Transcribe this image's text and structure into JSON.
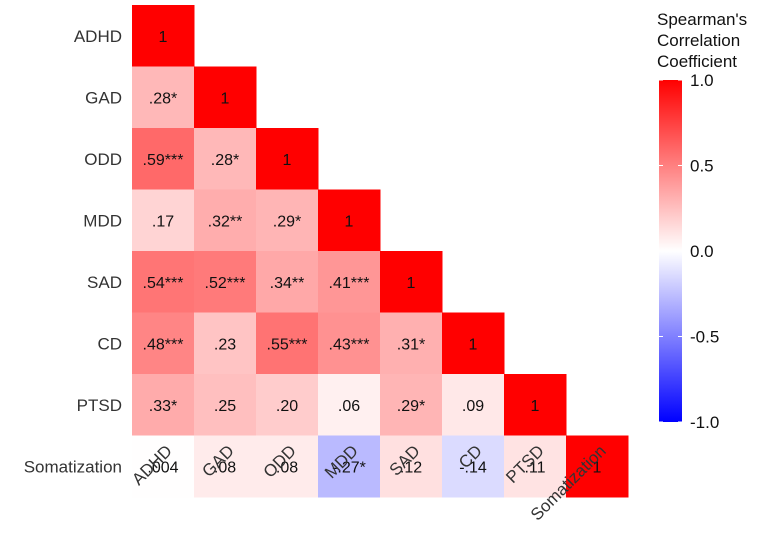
{
  "chart_data": {
    "type": "heatmap",
    "variables": [
      "ADHD",
      "GAD",
      "ODD",
      "MDD",
      "SAD",
      "CD",
      "PTSD",
      "Somatization"
    ],
    "cells": [
      [
        {
          "v": 1,
          "label": "1"
        }
      ],
      [
        {
          "v": 0.28,
          "label": ".28*"
        },
        {
          "v": 1,
          "label": "1"
        }
      ],
      [
        {
          "v": 0.59,
          "label": ".59***"
        },
        {
          "v": 0.28,
          "label": ".28*"
        },
        {
          "v": 1,
          "label": "1"
        }
      ],
      [
        {
          "v": 0.17,
          "label": ".17"
        },
        {
          "v": 0.32,
          "label": ".32**"
        },
        {
          "v": 0.29,
          "label": ".29*"
        },
        {
          "v": 1,
          "label": "1"
        }
      ],
      [
        {
          "v": 0.54,
          "label": ".54***"
        },
        {
          "v": 0.52,
          "label": ".52***"
        },
        {
          "v": 0.34,
          "label": ".34**"
        },
        {
          "v": 0.41,
          "label": ".41***"
        },
        {
          "v": 1,
          "label": "1"
        }
      ],
      [
        {
          "v": 0.48,
          "label": ".48***"
        },
        {
          "v": 0.23,
          "label": ".23"
        },
        {
          "v": 0.55,
          "label": ".55***"
        },
        {
          "v": 0.43,
          "label": ".43***"
        },
        {
          "v": 0.31,
          "label": ".31*"
        },
        {
          "v": 1,
          "label": "1"
        }
      ],
      [
        {
          "v": 0.33,
          "label": ".33*"
        },
        {
          "v": 0.25,
          "label": ".25"
        },
        {
          "v": 0.2,
          "label": ".20"
        },
        {
          "v": 0.06,
          "label": ".06"
        },
        {
          "v": 0.29,
          "label": ".29*"
        },
        {
          "v": 0.09,
          "label": ".09"
        },
        {
          "v": 1,
          "label": "1"
        }
      ],
      [
        {
          "v": 0.004,
          "label": ".004"
        },
        {
          "v": 0.08,
          "label": ".08"
        },
        {
          "v": 0.08,
          "label": ".08"
        },
        {
          "v": -0.27,
          "label": "-.27*"
        },
        {
          "v": 0.12,
          "label": ".12"
        },
        {
          "v": -0.14,
          "label": "-.14"
        },
        {
          "v": 0.11,
          "label": ".11"
        },
        {
          "v": 1,
          "label": "1"
        }
      ]
    ],
    "legend": {
      "title_lines": [
        "Spearman's",
        "Correlation",
        "Coefficient"
      ],
      "ticks": [
        {
          "v": 1.0,
          "label": "1.0"
        },
        {
          "v": 0.5,
          "label": "0.5"
        },
        {
          "v": 0.0,
          "label": "0.0"
        },
        {
          "v": -0.5,
          "label": "-0.5"
        },
        {
          "v": -1.0,
          "label": "-1.0"
        }
      ],
      "range": [
        -1,
        1
      ],
      "placement": "right"
    },
    "colors": {
      "low": "#0000ff",
      "mid": "#ffffff",
      "high": "#ff0000"
    }
  }
}
